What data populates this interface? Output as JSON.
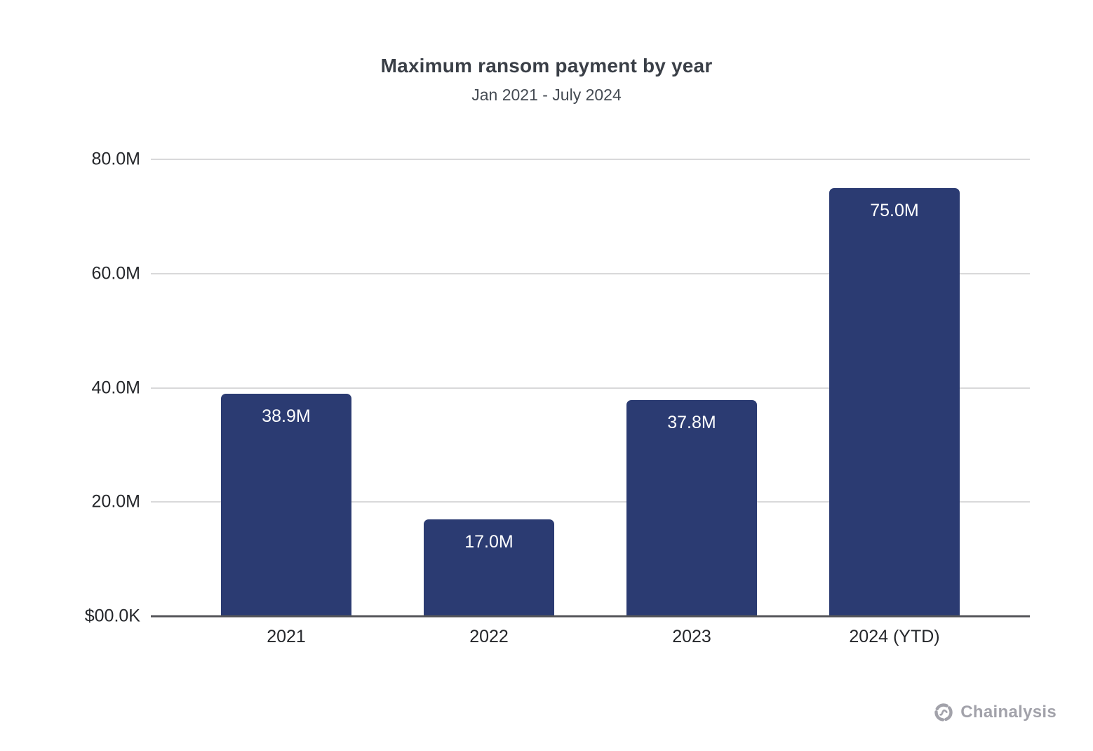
{
  "header": {
    "title": "Maximum ransom payment by year",
    "subtitle": "Jan 2021 - July 2024"
  },
  "chart_data": {
    "type": "bar",
    "title": "Maximum ransom payment by year",
    "subtitle": "Jan 2021 - July 2024",
    "categories": [
      "2021",
      "2022",
      "2023",
      "2024 (YTD)"
    ],
    "values": [
      38.9,
      17.0,
      37.8,
      75.0
    ],
    "values_unit": "USD millions",
    "bar_labels": [
      "38.9M",
      "17.0M",
      "37.8M",
      "75.0M"
    ],
    "xlabel": "",
    "ylabel": "",
    "ylim": [
      0,
      80
    ],
    "y_ticks": [
      {
        "label": "$00.0K",
        "value": 0
      },
      {
        "label": "20.0M",
        "value": 20
      },
      {
        "label": "40.0M",
        "value": 40
      },
      {
        "label": "60.0M",
        "value": 60
      },
      {
        "label": "80.0M",
        "value": 80
      }
    ],
    "grid": "horizontal gridlines",
    "legend_position": "none",
    "bar_color": "#2b3b72"
  },
  "footer": {
    "brand": "Chainalysis"
  },
  "colors": {
    "bar": "#2b3b72",
    "bar_label": "#ffffff",
    "gridline": "#d9d9da",
    "axis_line": "#55565a",
    "title_text": "#3a3f47",
    "tick_text": "#25272b",
    "brand_gray": "#a2a2aa"
  }
}
